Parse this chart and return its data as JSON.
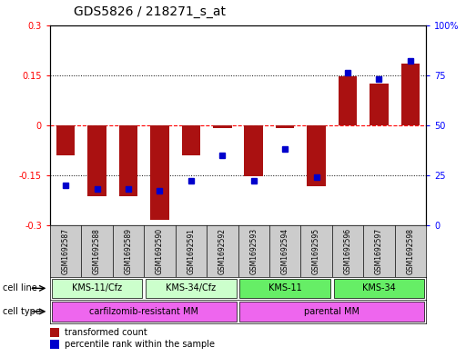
{
  "title": "GDS5826 / 218271_s_at",
  "samples": [
    "GSM1692587",
    "GSM1692588",
    "GSM1692589",
    "GSM1692590",
    "GSM1692591",
    "GSM1692592",
    "GSM1692593",
    "GSM1692594",
    "GSM1692595",
    "GSM1692596",
    "GSM1692597",
    "GSM1692598"
  ],
  "transformed_count": [
    -0.09,
    -0.215,
    -0.215,
    -0.285,
    -0.09,
    -0.01,
    -0.155,
    -0.01,
    -0.185,
    0.145,
    0.125,
    0.185
  ],
  "percentile_rank": [
    20,
    18,
    18,
    17,
    22,
    35,
    22,
    38,
    24,
    76,
    73,
    82
  ],
  "cell_line_groups": [
    {
      "label": "KMS-11/Cfz",
      "start": 0,
      "end": 2,
      "color": "#ccffcc"
    },
    {
      "label": "KMS-34/Cfz",
      "start": 3,
      "end": 5,
      "color": "#ccffcc"
    },
    {
      "label": "KMS-11",
      "start": 6,
      "end": 8,
      "color": "#66ee66"
    },
    {
      "label": "KMS-34",
      "start": 9,
      "end": 11,
      "color": "#66ee66"
    }
  ],
  "cell_type_groups": [
    {
      "label": "carfilzomib-resistant MM",
      "start": 0,
      "end": 5,
      "color": "#ee66ee"
    },
    {
      "label": "parental MM",
      "start": 6,
      "end": 11,
      "color": "#ee66ee"
    }
  ],
  "ylim": [
    -0.3,
    0.3
  ],
  "y2lim": [
    0,
    100
  ],
  "yticks": [
    -0.3,
    -0.15,
    0,
    0.15,
    0.3
  ],
  "y2ticks": [
    0,
    25,
    50,
    75,
    100
  ],
  "bar_color": "#aa1111",
  "dot_color": "#0000cc",
  "background_color": "#ffffff",
  "plot_bg": "#ffffff",
  "title_fontsize": 10,
  "tick_fontsize": 7,
  "sample_fontsize": 5.5,
  "label_fontsize": 7.5
}
